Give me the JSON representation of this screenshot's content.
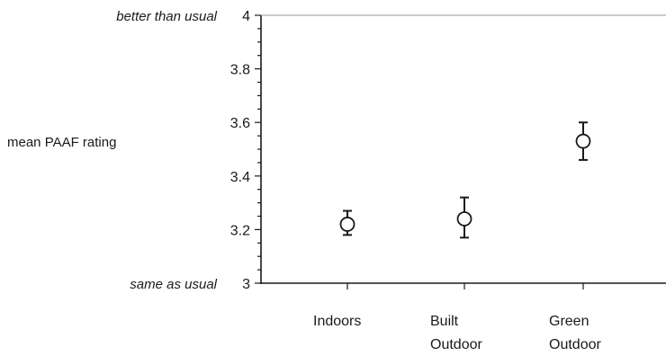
{
  "chart_data": {
    "type": "scatter",
    "xlabel": "",
    "ylabel": "mean PAAF rating",
    "ylim": [
      3,
      4
    ],
    "yticks": [
      {
        "value": 4,
        "label": "4"
      },
      {
        "value": 3.8,
        "label": "3.8"
      },
      {
        "value": 3.6,
        "label": "3.6"
      },
      {
        "value": 3.4,
        "label": "3.4"
      },
      {
        "value": 3.2,
        "label": "3.2"
      },
      {
        "value": 3,
        "label": "3"
      }
    ],
    "y_anchor_labels": [
      {
        "value": 4,
        "label": "better than usual"
      },
      {
        "value": 3,
        "label": "same as usual"
      }
    ],
    "categories": [
      {
        "lines": [
          "Indoors"
        ]
      },
      {
        "lines": [
          "Built",
          "Outdoor"
        ]
      },
      {
        "lines": [
          "Green",
          "Outdoor"
        ]
      }
    ],
    "points": [
      {
        "mean": 3.22,
        "lower": 3.18,
        "upper": 3.27
      },
      {
        "mean": 3.24,
        "lower": 3.17,
        "upper": 3.32
      },
      {
        "mean": 3.53,
        "lower": 3.46,
        "upper": 3.6
      }
    ],
    "marker": "open-circle",
    "error_bars": true,
    "grid": false,
    "colors": {
      "ink": "#1a1a1a",
      "background": "#ffffff"
    }
  }
}
